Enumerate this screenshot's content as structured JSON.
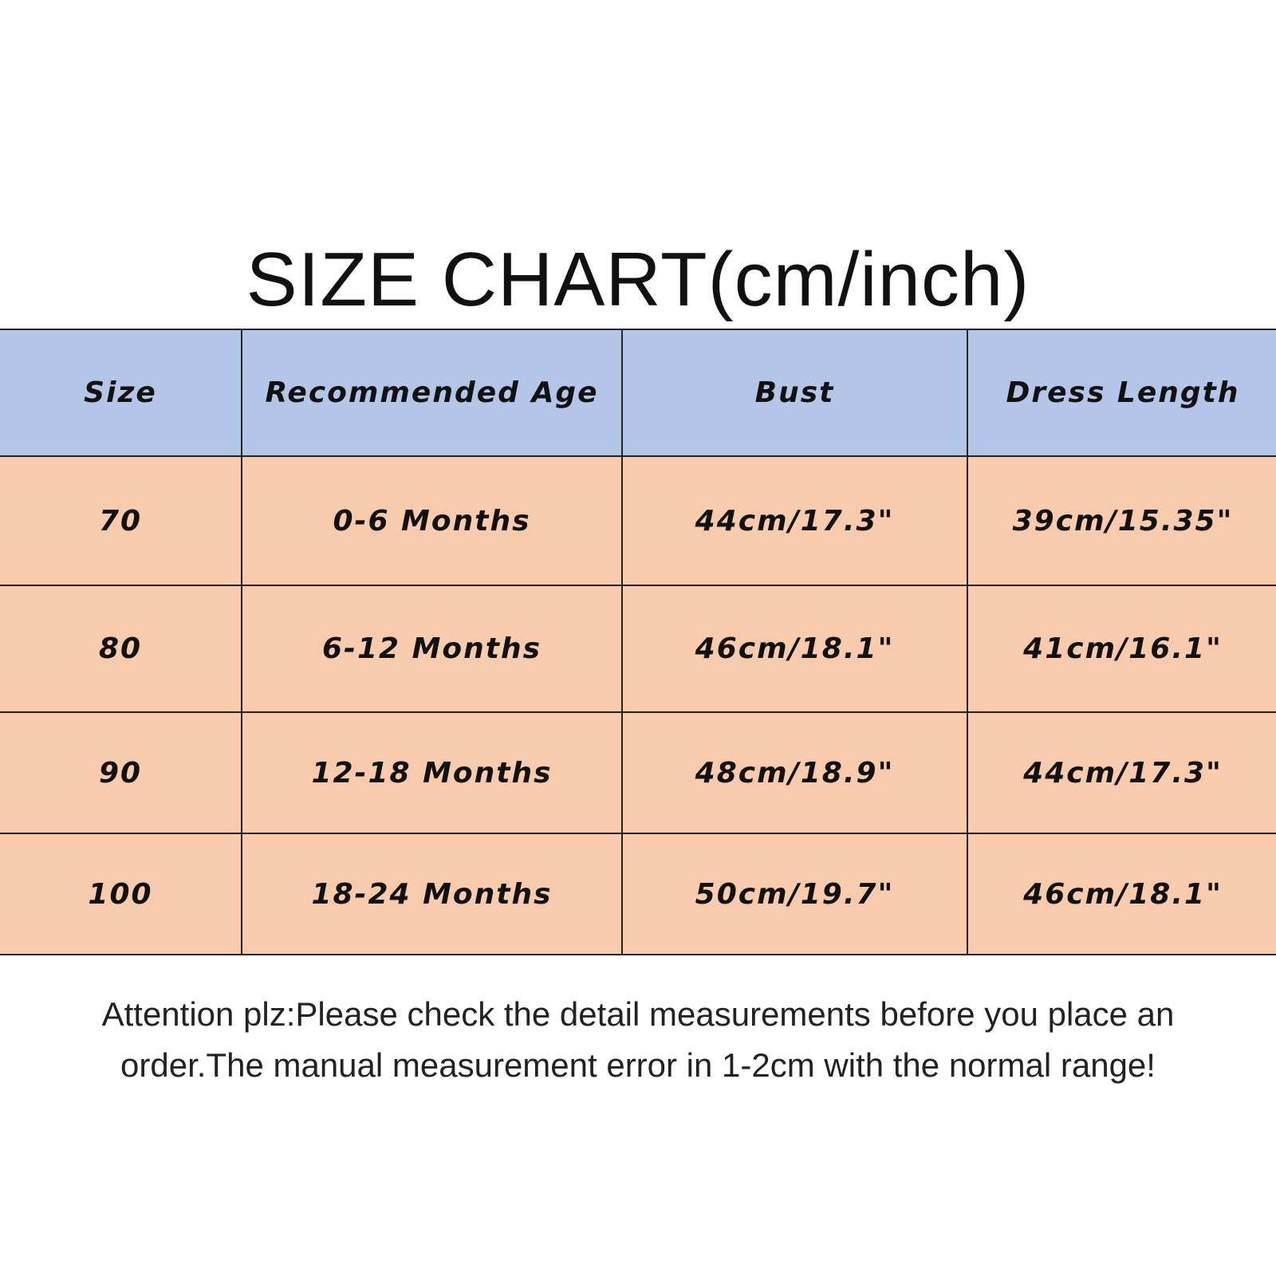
{
  "title": "SIZE CHART(cm/inch)",
  "colors": {
    "header_bg": "#b4c6e7",
    "row_bg": "#f8cbad"
  },
  "table": {
    "headers": [
      "Size",
      "Recommended Age",
      "Bust",
      "Dress Length"
    ],
    "rows": [
      [
        "70",
        "0-6 Months",
        "44cm/17.3\"",
        "39cm/15.35\""
      ],
      [
        "80",
        "6-12 Months",
        "46cm/18.1\"",
        "41cm/16.1\""
      ],
      [
        "90",
        "12-18 Months",
        "48cm/18.9\"",
        "44cm/17.3\""
      ],
      [
        "100",
        "18-24 Months",
        "50cm/19.7\"",
        "46cm/18.1\""
      ]
    ]
  },
  "note": {
    "line1": "Attention plz:Please check the detail measurements before you place an",
    "line2": "order.The manual measurement error in 1-2cm with the normal range!"
  }
}
